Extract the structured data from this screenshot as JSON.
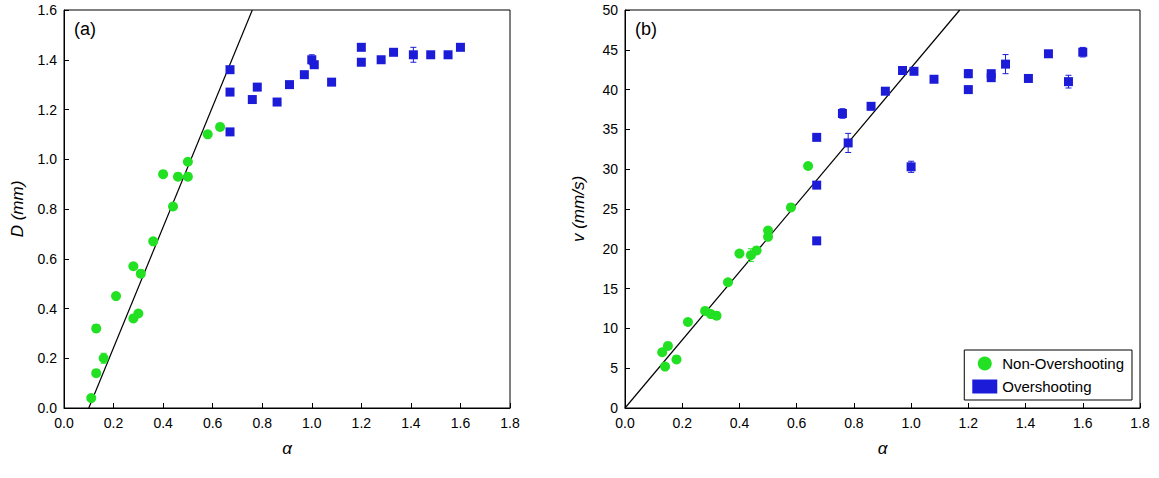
{
  "chart_data": [
    {
      "type": "scatter",
      "annotations": [
        "(a)"
      ],
      "x_label": "α",
      "y_label": "D (mm)",
      "xlim": [
        0,
        1.8
      ],
      "xticks": [
        {
          "value": 0,
          "label": "0.0"
        },
        0.2,
        0.4,
        0.6,
        0.8,
        {
          "value": 1,
          "label": "1.0"
        },
        1.2,
        1.4,
        1.6,
        1.8
      ],
      "ylim": [
        0,
        1.6
      ],
      "yticks": [
        {
          "value": 0,
          "label": "0.0"
        },
        0.2,
        0.4,
        0.6,
        0.8,
        {
          "value": 1,
          "label": "1.0"
        },
        1.2,
        1.4,
        1.6
      ],
      "grid": false,
      "series": [
        {
          "type": "scatter",
          "color": "#22e022",
          "marker": "circle",
          "x": [
            0.11,
            0.13,
            0.13,
            0.16,
            0.21,
            0.28,
            0.28,
            0.3,
            0.31,
            0.36,
            0.4,
            0.44,
            0.46,
            0.5,
            0.5,
            0.58,
            0.63
          ],
          "values": [
            0.04,
            0.14,
            0.32,
            0.2,
            0.45,
            0.57,
            0.36,
            0.38,
            0.54,
            0.67,
            0.94,
            0.81,
            0.93,
            0.99,
            0.93,
            1.1,
            1.13
          ],
          "errors": [
            null,
            null,
            0.015,
            0.02,
            null,
            null,
            null,
            null,
            null,
            null,
            null,
            null,
            null,
            null,
            null,
            null,
            null
          ]
        },
        {
          "type": "scatter",
          "color": "#1c1cd8",
          "marker": "square",
          "x": [
            0.67,
            0.67,
            0.67,
            0.76,
            0.78,
            0.86,
            0.91,
            0.97,
            1.0,
            1.01,
            1.08,
            1.2,
            1.2,
            1.28,
            1.33,
            1.41,
            1.48,
            1.55,
            1.6
          ],
          "values": [
            1.11,
            1.27,
            1.36,
            1.24,
            1.29,
            1.23,
            1.3,
            1.34,
            1.4,
            1.38,
            1.31,
            1.39,
            1.45,
            1.4,
            1.43,
            1.42,
            1.42,
            1.42,
            1.45
          ],
          "errors": [
            null,
            null,
            null,
            null,
            null,
            null,
            null,
            null,
            0.02,
            null,
            null,
            null,
            null,
            null,
            null,
            0.03,
            null,
            null,
            null
          ]
        },
        {
          "type": "line",
          "color": "#000000",
          "line_style": "solid",
          "x": [
            0.1,
            0.76
          ],
          "values": [
            0,
            1.6
          ]
        }
      ]
    },
    {
      "type": "scatter",
      "annotations": [
        "(b)"
      ],
      "x_label": "α",
      "y_label": "v (mm/s)",
      "xlim": [
        0,
        1.8
      ],
      "xticks": [
        {
          "value": 0,
          "label": "0.0"
        },
        0.2,
        0.4,
        0.6,
        0.8,
        {
          "value": 1,
          "label": "1.0"
        },
        1.2,
        1.4,
        1.6,
        1.8
      ],
      "ylim": [
        0,
        50
      ],
      "yticks": [
        0,
        5,
        10,
        15,
        20,
        25,
        30,
        35,
        40,
        45,
        50
      ],
      "grid": false,
      "legend": "lower right",
      "series": [
        {
          "name": "Non-Overshooting",
          "type": "scatter",
          "color": "#22e022",
          "marker": "circle",
          "x": [
            0.13,
            0.14,
            0.15,
            0.18,
            0.22,
            0.28,
            0.3,
            0.32,
            0.36,
            0.4,
            0.44,
            0.46,
            0.5,
            0.5,
            0.58,
            0.64
          ],
          "values": [
            7,
            5.2,
            7.8,
            6.1,
            10.8,
            12.2,
            11.8,
            11.6,
            15.8,
            19.4,
            19.2,
            19.8,
            22.3,
            21.5,
            25.2,
            30.4
          ],
          "errors": [
            null,
            null,
            null,
            null,
            null,
            null,
            null,
            null,
            null,
            null,
            0.8,
            null,
            null,
            null,
            null,
            null
          ]
        },
        {
          "name": "Overshooting",
          "type": "scatter",
          "color": "#1c1cd8",
          "marker": "square",
          "x": [
            0.67,
            0.67,
            0.67,
            0.76,
            0.78,
            0.86,
            0.91,
            0.97,
            1.0,
            1.01,
            1.08,
            1.2,
            1.2,
            1.28,
            1.28,
            1.33,
            1.41,
            1.48,
            1.55,
            1.6
          ],
          "values": [
            21,
            28,
            34,
            37,
            33.3,
            37.9,
            39.8,
            42.4,
            30.3,
            42.3,
            41.3,
            40,
            42,
            41.5,
            42,
            43.2,
            41.4,
            44.5,
            41,
            44.7
          ],
          "errors": [
            null,
            null,
            null,
            0.6,
            1.2,
            null,
            null,
            null,
            0.7,
            null,
            null,
            null,
            0.5,
            null,
            null,
            1.2,
            null,
            null,
            0.8,
            0.6
          ]
        },
        {
          "type": "line",
          "color": "#000000",
          "line_style": "solid",
          "x": [
            0,
            1.17
          ],
          "values": [
            0,
            50
          ]
        }
      ]
    }
  ]
}
